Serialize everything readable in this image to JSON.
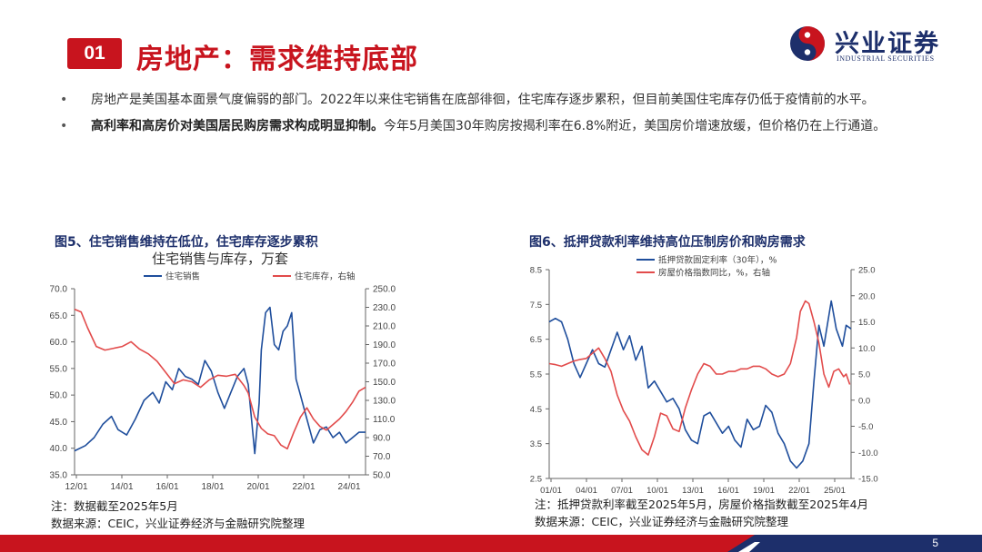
{
  "header": {
    "section_number": "01",
    "title": "房地产：需求维持底部",
    "logo_cn": "兴业证券",
    "logo_en": "INDUSTRIAL SECURITIES",
    "brand_red": "#c8141e",
    "brand_navy": "#1d2f6b"
  },
  "bullets": [
    {
      "bold": "",
      "text": "房地产是美国基本面景气度偏弱的部门。2022年以来住宅销售在底部徘徊，住宅库存逐步累积，但目前美国住宅库存仍低于疫情前的水平。"
    },
    {
      "bold": "高利率和高房价对美国居民购房需求构成明显抑制。",
      "text": "今年5月美国30年购房按揭利率在6.8%附近，美国房价增速放缓，但价格仍在上行通道。"
    }
  ],
  "figures": {
    "fig5": {
      "caption": "图5、住宅销售维持在低位，住宅库存逐步累积",
      "note": "注：数据截至2025年5月",
      "source": "数据来源：CEIC，兴业证券经济与金融研究院整理"
    },
    "fig6": {
      "caption": "图6、抵押贷款利率维持高位压制房价和购房需求",
      "note": "注：抵押贷款利率截至2025年5月，房屋价格指数截至2025年4月",
      "source": "数据来源：CEIC，兴业证券经济与金融研究院整理"
    }
  },
  "footer": {
    "page": "5"
  },
  "chart_data": [
    {
      "type": "line",
      "title": "住宅销售与库存，万套",
      "x_ticks": [
        "12/01",
        "14/01",
        "16/01",
        "18/01",
        "20/01",
        "22/01",
        "24/01"
      ],
      "x_range": [
        2012.0,
        2025.4
      ],
      "ylim_left": [
        35,
        70
      ],
      "yticks_left": [
        "35.0",
        "40.0",
        "45.0",
        "50.0",
        "55.0",
        "60.0",
        "65.0",
        "70.0"
      ],
      "ylim_right": [
        50,
        250
      ],
      "yticks_right": [
        "50.0",
        "70.0",
        "90.0",
        "110.0",
        "130.0",
        "150.0",
        "170.0",
        "190.0",
        "210.0",
        "230.0",
        "250.0"
      ],
      "grid": false,
      "legend_position": "top",
      "series": [
        {
          "name": "住宅销售",
          "axis": "left",
          "color": "#1f4e9c",
          "x": [
            2012.0,
            2012.5,
            2012.9,
            2013.3,
            2013.7,
            2014.0,
            2014.4,
            2014.8,
            2015.2,
            2015.6,
            2015.9,
            2016.2,
            2016.5,
            2016.8,
            2017.1,
            2017.4,
            2017.7,
            2018.0,
            2018.3,
            2018.6,
            2018.9,
            2019.2,
            2019.5,
            2019.8,
            2020.0,
            2020.3,
            2020.5,
            2020.6,
            2020.8,
            2021.0,
            2021.2,
            2021.4,
            2021.6,
            2021.8,
            2022.0,
            2022.2,
            2022.4,
            2022.7,
            2023.0,
            2023.3,
            2023.6,
            2023.9,
            2024.2,
            2024.5,
            2024.8,
            2025.1,
            2025.4
          ],
          "y": [
            39.5,
            40.5,
            42.0,
            44.5,
            46.0,
            43.5,
            42.5,
            45.5,
            49.0,
            50.5,
            48.5,
            52.5,
            51.0,
            55.0,
            53.5,
            53.0,
            52.0,
            56.5,
            54.5,
            50.5,
            47.5,
            50.5,
            53.5,
            55.0,
            52.0,
            39.0,
            48.5,
            58.5,
            65.5,
            66.5,
            59.5,
            58.5,
            62.0,
            63.0,
            65.5,
            53.0,
            50.0,
            45.5,
            41.0,
            43.5,
            44.0,
            42.0,
            43.0,
            41.0,
            42.0,
            43.0,
            43.0
          ]
        },
        {
          "name": "住宅库存，右轴",
          "axis": "right",
          "color": "#e24b4b",
          "x": [
            2012.0,
            2012.3,
            2012.6,
            2013.0,
            2013.4,
            2013.8,
            2014.2,
            2014.6,
            2015.0,
            2015.4,
            2015.8,
            2016.2,
            2016.6,
            2017.0,
            2017.4,
            2017.8,
            2018.2,
            2018.6,
            2019.0,
            2019.4,
            2019.8,
            2020.0,
            2020.3,
            2020.6,
            2020.9,
            2021.2,
            2021.5,
            2021.8,
            2022.1,
            2022.4,
            2022.7,
            2023.0,
            2023.3,
            2023.6,
            2023.9,
            2024.2,
            2024.5,
            2024.8,
            2025.1,
            2025.4
          ],
          "y": [
            228,
            225,
            208,
            188,
            184,
            186,
            188,
            193,
            185,
            180,
            172,
            160,
            148,
            152,
            150,
            144,
            152,
            157,
            156,
            158,
            146,
            138,
            112,
            100,
            94,
            92,
            82,
            78,
            96,
            112,
            122,
            110,
            102,
            98,
            104,
            110,
            118,
            128,
            140,
            144
          ]
        }
      ]
    },
    {
      "type": "line",
      "title": "",
      "x_ticks": [
        "01/01",
        "04/01",
        "07/01",
        "10/01",
        "13/01",
        "16/01",
        "19/01",
        "22/01",
        "25/01"
      ],
      "x_range": [
        2001.0,
        2025.4
      ],
      "ylim_left": [
        2.5,
        8.5
      ],
      "yticks_left": [
        "2.5",
        "3.5",
        "4.5",
        "5.5",
        "6.5",
        "7.5",
        "8.5"
      ],
      "ylim_right": [
        -15,
        25
      ],
      "yticks_right": [
        "-15.0",
        "-10.0",
        "-5.0",
        "0.0",
        "5.0",
        "10.0",
        "15.0",
        "20.0",
        "25.0"
      ],
      "grid": false,
      "legend_position": "top",
      "series": [
        {
          "name": "抵押贷款固定利率（30年），%",
          "axis": "left",
          "color": "#1f4e9c",
          "x": [
            2001.0,
            2001.5,
            2002.0,
            2002.5,
            2003.0,
            2003.5,
            2004.0,
            2004.5,
            2005.0,
            2005.5,
            2006.0,
            2006.5,
            2007.0,
            2007.5,
            2008.0,
            2008.5,
            2009.0,
            2009.5,
            2010.0,
            2010.5,
            2011.0,
            2011.5,
            2012.0,
            2012.5,
            2013.0,
            2013.5,
            2014.0,
            2014.5,
            2015.0,
            2015.5,
            2016.0,
            2016.5,
            2017.0,
            2017.5,
            2018.0,
            2018.5,
            2019.0,
            2019.5,
            2020.0,
            2020.5,
            2021.0,
            2021.5,
            2022.0,
            2022.4,
            2022.8,
            2023.2,
            2023.8,
            2024.2,
            2024.7,
            2025.0,
            2025.4
          ],
          "y": [
            7.0,
            7.1,
            7.0,
            6.5,
            5.8,
            5.4,
            5.8,
            6.2,
            5.8,
            5.7,
            6.2,
            6.7,
            6.2,
            6.6,
            5.9,
            6.3,
            5.1,
            5.3,
            5.0,
            4.7,
            4.8,
            4.5,
            3.9,
            3.6,
            3.5,
            4.3,
            4.4,
            4.1,
            3.8,
            4.0,
            3.6,
            3.4,
            4.2,
            3.9,
            4.0,
            4.6,
            4.4,
            3.8,
            3.5,
            3.0,
            2.8,
            3.0,
            3.5,
            5.3,
            6.9,
            6.3,
            7.6,
            6.8,
            6.3,
            6.9,
            6.8
          ]
        },
        {
          "name": "房屋价格指数同比，%，右轴",
          "axis": "right",
          "color": "#e24b4b",
          "x": [
            2001.0,
            2001.5,
            2002.0,
            2002.5,
            2003.0,
            2003.5,
            2004.0,
            2004.5,
            2005.0,
            2005.5,
            2006.0,
            2006.5,
            2007.0,
            2007.5,
            2008.0,
            2008.5,
            2009.0,
            2009.5,
            2010.0,
            2010.5,
            2011.0,
            2011.5,
            2012.0,
            2012.5,
            2013.0,
            2013.5,
            2014.0,
            2014.5,
            2015.0,
            2015.5,
            2016.0,
            2016.5,
            2017.0,
            2017.5,
            2018.0,
            2018.5,
            2019.0,
            2019.5,
            2020.0,
            2020.5,
            2021.0,
            2021.3,
            2021.7,
            2022.0,
            2022.4,
            2022.8,
            2023.2,
            2023.6,
            2024.0,
            2024.4,
            2024.8,
            2025.0,
            2025.3
          ],
          "y": [
            7.0,
            6.8,
            6.5,
            7.0,
            7.5,
            7.8,
            8.0,
            9.0,
            10.0,
            8.0,
            5.5,
            1.0,
            -2.0,
            -4.0,
            -7.0,
            -9.5,
            -10.5,
            -7.0,
            -2.5,
            -3.0,
            -5.5,
            -6.0,
            -1.5,
            2.0,
            5.0,
            7.0,
            6.5,
            5.0,
            5.0,
            5.5,
            5.5,
            6.0,
            6.0,
            6.5,
            6.5,
            6.0,
            5.0,
            4.5,
            5.0,
            7.0,
            12.0,
            17.0,
            19.0,
            18.5,
            15.0,
            11.0,
            5.0,
            2.5,
            5.5,
            6.0,
            4.5,
            5.0,
            3.0
          ]
        }
      ]
    }
  ]
}
